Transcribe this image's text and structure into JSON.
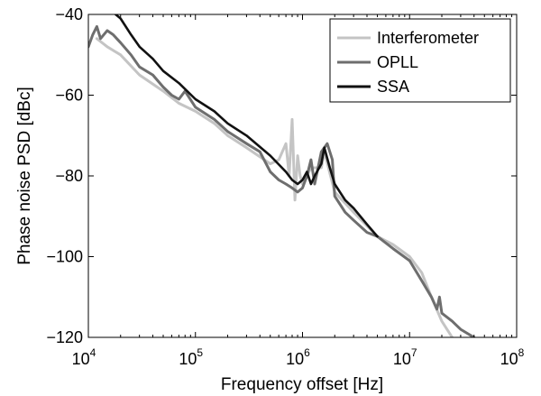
{
  "chart_data": {
    "type": "line",
    "xlabel": "Frequency offset [Hz]",
    "ylabel": "Phase noise PSD [dBc]",
    "xscale": "log",
    "xlim": [
      10000,
      100000000
    ],
    "ylim": [
      -120,
      -40
    ],
    "x_ticks": [
      {
        "base": "10",
        "exp": "4",
        "value": 10000
      },
      {
        "base": "10",
        "exp": "5",
        "value": 100000
      },
      {
        "base": "10",
        "exp": "6",
        "value": 1000000
      },
      {
        "base": "10",
        "exp": "7",
        "value": 10000000
      },
      {
        "base": "10",
        "exp": "8",
        "value": 100000000
      }
    ],
    "y_ticks": [
      {
        "label": "−120",
        "value": -120
      },
      {
        "label": "−100",
        "value": -100
      },
      {
        "label": "−80",
        "value": -80
      },
      {
        "label": "−60",
        "value": -60
      },
      {
        "label": "−40",
        "value": -40
      }
    ],
    "grid": false,
    "legend_position": "top-right",
    "series": [
      {
        "name": "Interferometer",
        "color": "#c4c4c4",
        "points": [
          [
            12000,
            -46
          ],
          [
            15000,
            -48
          ],
          [
            20000,
            -50
          ],
          [
            30000,
            -55
          ],
          [
            50000,
            -59
          ],
          [
            70000,
            -62
          ],
          [
            100000,
            -64
          ],
          [
            150000,
            -67
          ],
          [
            200000,
            -70
          ],
          [
            300000,
            -73
          ],
          [
            500000,
            -77
          ],
          [
            600000,
            -76
          ],
          [
            700000,
            -72
          ],
          [
            750000,
            -80
          ],
          [
            800000,
            -66
          ],
          [
            850000,
            -86
          ],
          [
            900000,
            -75
          ],
          [
            950000,
            -80
          ],
          [
            1000000,
            -82
          ],
          [
            1200000,
            -78
          ],
          [
            1500000,
            -78
          ],
          [
            1600000,
            -74
          ],
          [
            2000000,
            -84
          ],
          [
            3000000,
            -89
          ],
          [
            5000000,
            -95
          ],
          [
            7000000,
            -97
          ],
          [
            10000000,
            -100
          ],
          [
            13000000,
            -104
          ],
          [
            16000000,
            -110
          ],
          [
            20000000,
            -116
          ],
          [
            25000000,
            -120
          ]
        ]
      },
      {
        "name": "OPLL",
        "color": "#6e6e6e",
        "points": [
          [
            10000,
            -48
          ],
          [
            11000,
            -45
          ],
          [
            12000,
            -43
          ],
          [
            13000,
            -46
          ],
          [
            15000,
            -44
          ],
          [
            17000,
            -45
          ],
          [
            20000,
            -47
          ],
          [
            25000,
            -50
          ],
          [
            30000,
            -53
          ],
          [
            40000,
            -55
          ],
          [
            50000,
            -58
          ],
          [
            60000,
            -60
          ],
          [
            70000,
            -61
          ],
          [
            80000,
            -59
          ],
          [
            100000,
            -63
          ],
          [
            150000,
            -66
          ],
          [
            200000,
            -69
          ],
          [
            300000,
            -72
          ],
          [
            400000,
            -74
          ],
          [
            500000,
            -79
          ],
          [
            600000,
            -81
          ],
          [
            700000,
            -82
          ],
          [
            800000,
            -83
          ],
          [
            900000,
            -84
          ],
          [
            1000000,
            -83
          ],
          [
            1100000,
            -80
          ],
          [
            1200000,
            -76
          ],
          [
            1300000,
            -82
          ],
          [
            1500000,
            -74
          ],
          [
            1700000,
            -72
          ],
          [
            1900000,
            -76
          ],
          [
            2000000,
            -85
          ],
          [
            2500000,
            -89
          ],
          [
            3000000,
            -91
          ],
          [
            4000000,
            -94
          ],
          [
            5000000,
            -95
          ],
          [
            7000000,
            -98
          ],
          [
            10000000,
            -101
          ],
          [
            13000000,
            -106
          ],
          [
            16000000,
            -110
          ],
          [
            18000000,
            -113
          ],
          [
            19000000,
            -110
          ],
          [
            20000000,
            -114
          ],
          [
            25000000,
            -116
          ],
          [
            30000000,
            -118
          ],
          [
            40000000,
            -120
          ]
        ]
      },
      {
        "name": "SSA",
        "color": "#111111",
        "points": [
          [
            18000,
            -40
          ],
          [
            20000,
            -41
          ],
          [
            25000,
            -45
          ],
          [
            30000,
            -48
          ],
          [
            40000,
            -51
          ],
          [
            50000,
            -54
          ],
          [
            70000,
            -57
          ],
          [
            100000,
            -61
          ],
          [
            150000,
            -64
          ],
          [
            200000,
            -67
          ],
          [
            300000,
            -70
          ],
          [
            500000,
            -75
          ],
          [
            700000,
            -79
          ],
          [
            800000,
            -81
          ],
          [
            900000,
            -82
          ],
          [
            1000000,
            -81
          ],
          [
            1100000,
            -79
          ],
          [
            1200000,
            -82
          ],
          [
            1300000,
            -80
          ],
          [
            1500000,
            -77
          ],
          [
            1600000,
            -73
          ],
          [
            1800000,
            -78
          ],
          [
            2000000,
            -82
          ],
          [
            2500000,
            -86
          ],
          [
            3000000,
            -88
          ],
          [
            4000000,
            -92
          ],
          [
            5000000,
            -95
          ]
        ]
      }
    ]
  }
}
